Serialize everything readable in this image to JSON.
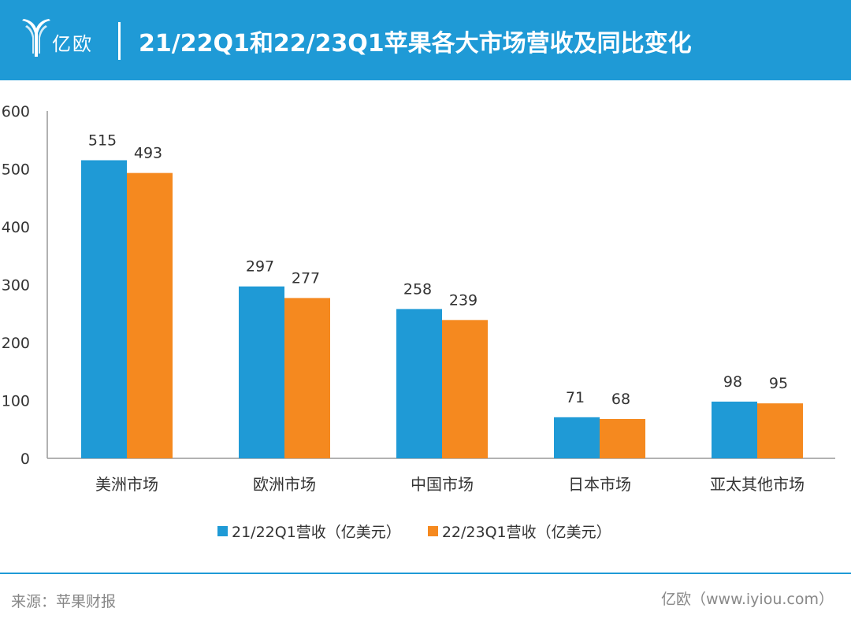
{
  "header": {
    "logo_text": "亿欧",
    "title": "21/22Q1和22/23Q1苹果各大市场营收及同比变化"
  },
  "colors": {
    "header_bg": "#1f9ad6",
    "series_1": "#1f9ad6",
    "series_2": "#f5891f",
    "axis": "#999999",
    "text": "#333333",
    "footer_text": "#888888"
  },
  "chart_data": {
    "type": "bar",
    "title": "21/22Q1和22/23Q1苹果各大市场营收及同比变化",
    "categories": [
      "美洲市场",
      "欧洲市场",
      "中国市场",
      "日本市场",
      "亚太其他市场"
    ],
    "series": [
      {
        "name": "21/22Q1营收（亿美元）",
        "values": [
          515,
          297,
          258,
          71,
          98
        ]
      },
      {
        "name": "22/23Q1营收（亿美元）",
        "values": [
          493,
          277,
          239,
          68,
          95
        ]
      }
    ],
    "y_ticks": [
      "0",
      "100",
      "200",
      "300",
      "400",
      "500",
      "600"
    ],
    "ylim": [
      0,
      600
    ],
    "grid": false,
    "legend_position": "bottom-center",
    "xlabel": "",
    "ylabel": ""
  },
  "footer": {
    "source": "来源：苹果财报",
    "brand": "亿欧（www.iyiou.com）"
  }
}
